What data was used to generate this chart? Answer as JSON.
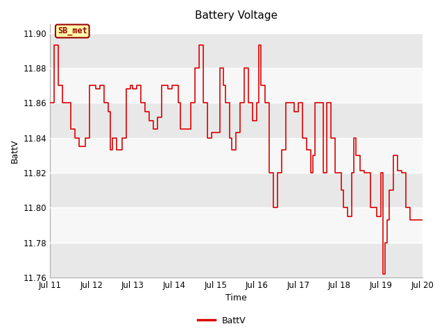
{
  "title": "Battery Voltage",
  "xlabel": "Time",
  "ylabel": "BattV",
  "ylim": [
    11.76,
    11.905
  ],
  "yticks": [
    11.76,
    11.78,
    11.8,
    11.82,
    11.84,
    11.86,
    11.88,
    11.9
  ],
  "legend_label": "BattV",
  "line_color": "#dd0000",
  "line_width": 1.2,
  "annotation_text": "SB_met",
  "annotation_bg": "#ffffaa",
  "annotation_border": "#990000",
  "bg_color": "#ffffff",
  "band_color_dark": "#e8e8e8",
  "band_color_light": "#f7f7f7",
  "title_fontsize": 11,
  "axis_label_fontsize": 9,
  "tick_fontsize": 8.5,
  "figwidth": 6.4,
  "figheight": 4.8
}
